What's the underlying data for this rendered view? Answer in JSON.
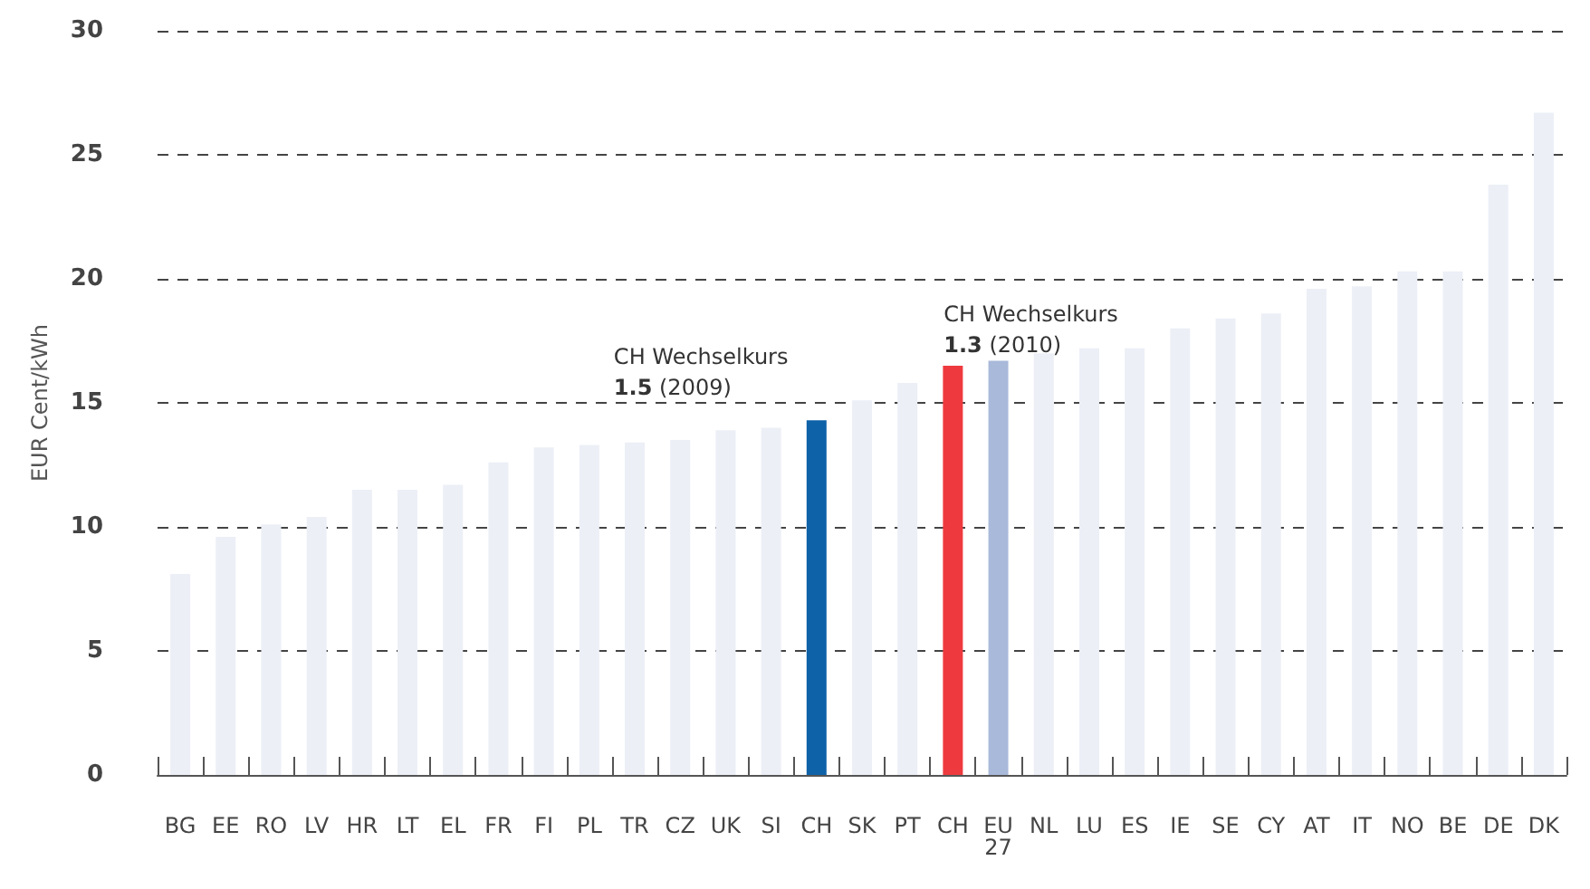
{
  "chart_data": {
    "type": "bar",
    "ylabel": "EUR Cent/kWh",
    "categories": [
      "BG",
      "EE",
      "RO",
      "LV",
      "HR",
      "LT",
      "EL",
      "FR",
      "FI",
      "PL",
      "TR",
      "CZ",
      "UK",
      "SI",
      "CH",
      "SK",
      "PT",
      "CH",
      "EU 27",
      "NL",
      "LU",
      "ES",
      "IE",
      "SE",
      "CY",
      "AT",
      "IT",
      "NO",
      "BE",
      "DE",
      "DK"
    ],
    "values": [
      8.1,
      9.6,
      10.1,
      10.4,
      11.5,
      11.5,
      11.7,
      12.6,
      13.2,
      13.3,
      13.4,
      13.5,
      13.9,
      14.0,
      14.3,
      15.1,
      15.8,
      16.5,
      16.7,
      17.0,
      17.2,
      17.2,
      18.0,
      18.4,
      18.6,
      19.6,
      19.7,
      20.3,
      20.3,
      23.8,
      26.7
    ],
    "colors": [
      "#eceff6",
      "#eceff6",
      "#eceff6",
      "#eceff6",
      "#eceff6",
      "#eceff6",
      "#eceff6",
      "#eceff6",
      "#eceff6",
      "#eceff6",
      "#eceff6",
      "#eceff6",
      "#eceff6",
      "#eceff6",
      "#0e62a8",
      "#eceff6",
      "#eceff6",
      "#ee3a3e",
      "#a9b9d9",
      "#eceff6",
      "#eceff6",
      "#eceff6",
      "#eceff6",
      "#eceff6",
      "#eceff6",
      "#eceff6",
      "#eceff6",
      "#eceff6",
      "#eceff6",
      "#eceff6",
      "#eceff6"
    ],
    "ylim": [
      0,
      30
    ],
    "yticks": [
      0,
      5,
      10,
      15,
      20,
      25,
      30
    ],
    "grid": "y",
    "annotations": [
      "CH Wechselkurs\n1.5 (2009)",
      "CH Wechselkurs\n1.3 (2010)"
    ]
  }
}
